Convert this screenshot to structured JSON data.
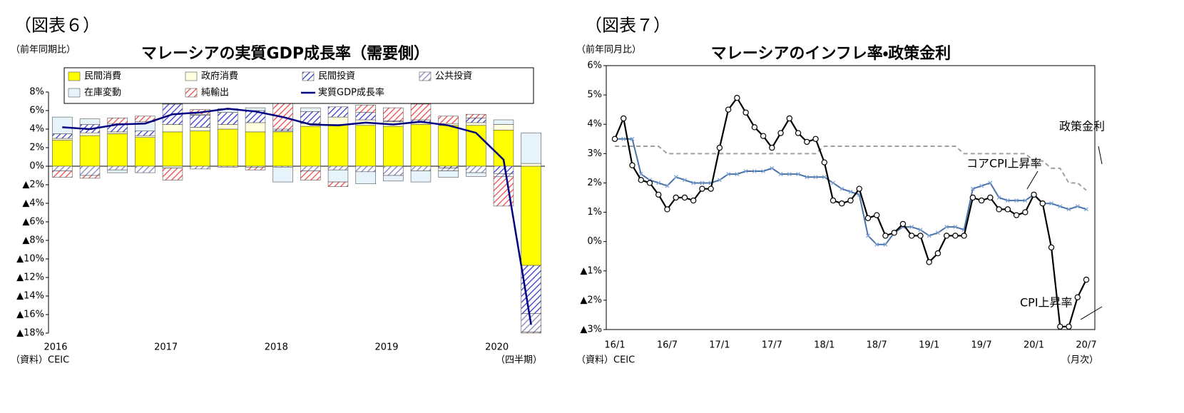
{
  "chart_data": [
    {
      "type": "bar",
      "stacked": true,
      "figure_label": "（図表６）",
      "title": "マレーシアの実質GDP成長率（需要側）",
      "y_unit_label": "（前年同期比）",
      "source": "（資料）CEIC",
      "x_unit_label": "（四半期）",
      "categories": [
        "2016",
        null,
        null,
        null,
        "2017",
        null,
        null,
        null,
        "2018",
        null,
        null,
        null,
        "2019",
        null,
        null,
        null,
        "2020",
        null
      ],
      "ylim": [
        -18,
        8
      ],
      "yticks": [
        {
          "value": 8,
          "label": "8%"
        },
        {
          "value": 6,
          "label": "6%"
        },
        {
          "value": 4,
          "label": "4%"
        },
        {
          "value": 2,
          "label": "2%"
        },
        {
          "value": 0,
          "label": "0%"
        },
        {
          "value": -2,
          "label": "▲2%"
        },
        {
          "value": -4,
          "label": "▲4%"
        },
        {
          "value": -6,
          "label": "▲6%"
        },
        {
          "value": -8,
          "label": "▲8%"
        },
        {
          "value": -10,
          "label": "▲10%"
        },
        {
          "value": -12,
          "label": "▲12%"
        },
        {
          "value": -14,
          "label": "▲14%"
        },
        {
          "value": -16,
          "label": "▲16%"
        },
        {
          "value": -18,
          "label": "▲18%"
        }
      ],
      "grid": false,
      "series": [
        {
          "name": "民間消費",
          "color": "#ffff00",
          "hatch": false,
          "values": [
            2.8,
            3.3,
            3.5,
            3.1,
            3.7,
            3.8,
            4.0,
            3.7,
            3.7,
            4.3,
            4.5,
            4.4,
            4.3,
            4.5,
            4.4,
            4.4,
            3.9,
            -10.7
          ]
        },
        {
          "name": "政府消費",
          "color": "#ffffe0",
          "hatch": false,
          "values": [
            0.2,
            0.3,
            0.2,
            0.2,
            0.8,
            0.4,
            0.5,
            1.0,
            0.1,
            0.3,
            0.8,
            0.6,
            0.5,
            0.2,
            0.2,
            0.3,
            0.6,
            0.3
          ]
        },
        {
          "name": "民間投資",
          "color": "#3333cc",
          "hatch": true,
          "values": [
            0.5,
            0.9,
            0.9,
            0.5,
            2.2,
            1.3,
            1.3,
            1.3,
            0.2,
            1.3,
            1.1,
            0.8,
            0.1,
            0.3,
            -0.2,
            0.5,
            -0.8,
            -5.2
          ]
        },
        {
          "name": "公共投資",
          "color": "#8080c0",
          "hatch": true,
          "values": [
            -0.5,
            -1.0,
            -0.4,
            -0.7,
            0.2,
            -0.3,
            -0.1,
            -0.1,
            -0.1,
            -0.5,
            -0.4,
            -0.6,
            -1.0,
            -0.5,
            -0.3,
            -0.7,
            -0.3,
            -2.0
          ]
        },
        {
          "name": "在庫変動",
          "color": "#e6f3fb",
          "hatch": false,
          "values": [
            1.8,
            0.6,
            -0.3,
            1.0,
            -0.2,
            0.1,
            0.3,
            0.3,
            -1.6,
            0.4,
            -1.3,
            -1.3,
            -0.6,
            -1.2,
            -0.7,
            -0.4,
            0.5,
            3.3
          ]
        },
        {
          "name": "純輸出",
          "color": "#ee4444",
          "hatch": true,
          "values": [
            -0.7,
            -0.3,
            0.6,
            0.6,
            -1.3,
            0.5,
            0.1,
            -0.3,
            2.8,
            -1.0,
            -0.5,
            0.8,
            1.4,
            1.7,
            0.8,
            0.4,
            -3.2,
            -0.1
          ]
        },
        {
          "name": "実質GDP成長率",
          "type": "line",
          "color": "#000080",
          "values": [
            4.2,
            4.0,
            4.5,
            4.6,
            5.6,
            5.8,
            6.2,
            5.9,
            5.3,
            4.5,
            4.4,
            4.7,
            4.5,
            4.8,
            4.4,
            3.6,
            0.7,
            -17.1
          ]
        }
      ]
    },
    {
      "type": "line",
      "figure_label": "（図表７）",
      "title": "マレーシアのインフレ率・政策金利",
      "y_unit_label": "（前年同月比）",
      "source": "（資料）CEIC",
      "x_unit_label": "（月次）",
      "categories": [
        "16/1",
        null,
        null,
        null,
        null,
        null,
        "16/7",
        null,
        null,
        null,
        null,
        null,
        "17/1",
        null,
        null,
        null,
        null,
        null,
        "17/7",
        null,
        null,
        null,
        null,
        null,
        "18/1",
        null,
        null,
        null,
        null,
        null,
        "18/7",
        null,
        null,
        null,
        null,
        null,
        "19/1",
        null,
        null,
        null,
        null,
        null,
        "19/7",
        null,
        null,
        null,
        null,
        null,
        "20/1",
        null,
        null,
        null,
        null,
        null,
        "20/7"
      ],
      "ylim": [
        -3,
        6
      ],
      "yticks": [
        {
          "value": 6,
          "label": "6%"
        },
        {
          "value": 5,
          "label": "5%"
        },
        {
          "value": 4,
          "label": "4%"
        },
        {
          "value": 3,
          "label": "3%"
        },
        {
          "value": 2,
          "label": "2%"
        },
        {
          "value": 1,
          "label": "1%"
        },
        {
          "value": 0,
          "label": "0%"
        },
        {
          "value": -1,
          "label": "▲1%"
        },
        {
          "value": -2,
          "label": "▲2%"
        },
        {
          "value": -3,
          "label": "▲3%"
        }
      ],
      "grid": false,
      "series": [
        {
          "name": "CPI上昇率",
          "color": "#000000",
          "marker": "circle",
          "dashed": false,
          "values": [
            3.5,
            4.2,
            2.6,
            2.1,
            2.0,
            1.6,
            1.1,
            1.5,
            1.5,
            1.4,
            1.8,
            1.8,
            3.2,
            4.5,
            4.9,
            4.4,
            3.9,
            3.6,
            3.2,
            3.7,
            4.2,
            3.7,
            3.4,
            3.5,
            2.7,
            1.4,
            1.3,
            1.4,
            1.8,
            0.8,
            0.9,
            0.2,
            0.3,
            0.6,
            0.2,
            0.2,
            -0.7,
            -0.4,
            0.2,
            0.2,
            0.2,
            1.5,
            1.4,
            1.5,
            1.1,
            1.1,
            0.9,
            1.0,
            1.6,
            1.3,
            -0.2,
            -2.9,
            -2.9,
            -1.9,
            -1.3
          ]
        },
        {
          "name": "コアCPI上昇率",
          "color": "#4a74a8",
          "marker": "x",
          "dashed": false,
          "values": [
            3.5,
            3.5,
            3.5,
            2.3,
            2.1,
            2.0,
            1.9,
            2.2,
            2.1,
            2.0,
            2.0,
            2.0,
            2.1,
            2.3,
            2.3,
            2.4,
            2.4,
            2.4,
            2.5,
            2.3,
            2.3,
            2.3,
            2.2,
            2.2,
            2.2,
            2.0,
            1.8,
            1.7,
            1.6,
            0.2,
            -0.1,
            -0.1,
            0.3,
            0.5,
            0.5,
            0.4,
            0.2,
            0.3,
            0.5,
            0.5,
            0.4,
            1.8,
            1.9,
            2.0,
            1.5,
            1.4,
            1.4,
            1.4,
            1.6,
            1.3,
            1.3,
            1.2,
            1.1,
            1.2,
            1.1
          ]
        },
        {
          "name": "政策金利",
          "color": "#a0a0a0",
          "marker": null,
          "dashed": true,
          "values": [
            3.25,
            3.25,
            3.25,
            3.25,
            3.25,
            3.25,
            3.0,
            3.0,
            3.0,
            3.0,
            3.0,
            3.0,
            3.0,
            3.0,
            3.0,
            3.0,
            3.0,
            3.0,
            3.0,
            3.0,
            3.0,
            3.0,
            3.0,
            3.0,
            3.25,
            3.25,
            3.25,
            3.25,
            3.25,
            3.25,
            3.25,
            3.25,
            3.25,
            3.25,
            3.25,
            3.25,
            3.25,
            3.25,
            3.25,
            3.25,
            3.0,
            3.0,
            3.0,
            3.0,
            3.0,
            3.0,
            3.0,
            3.0,
            2.75,
            2.75,
            2.5,
            2.5,
            2.0,
            2.0,
            1.75
          ]
        }
      ]
    }
  ]
}
